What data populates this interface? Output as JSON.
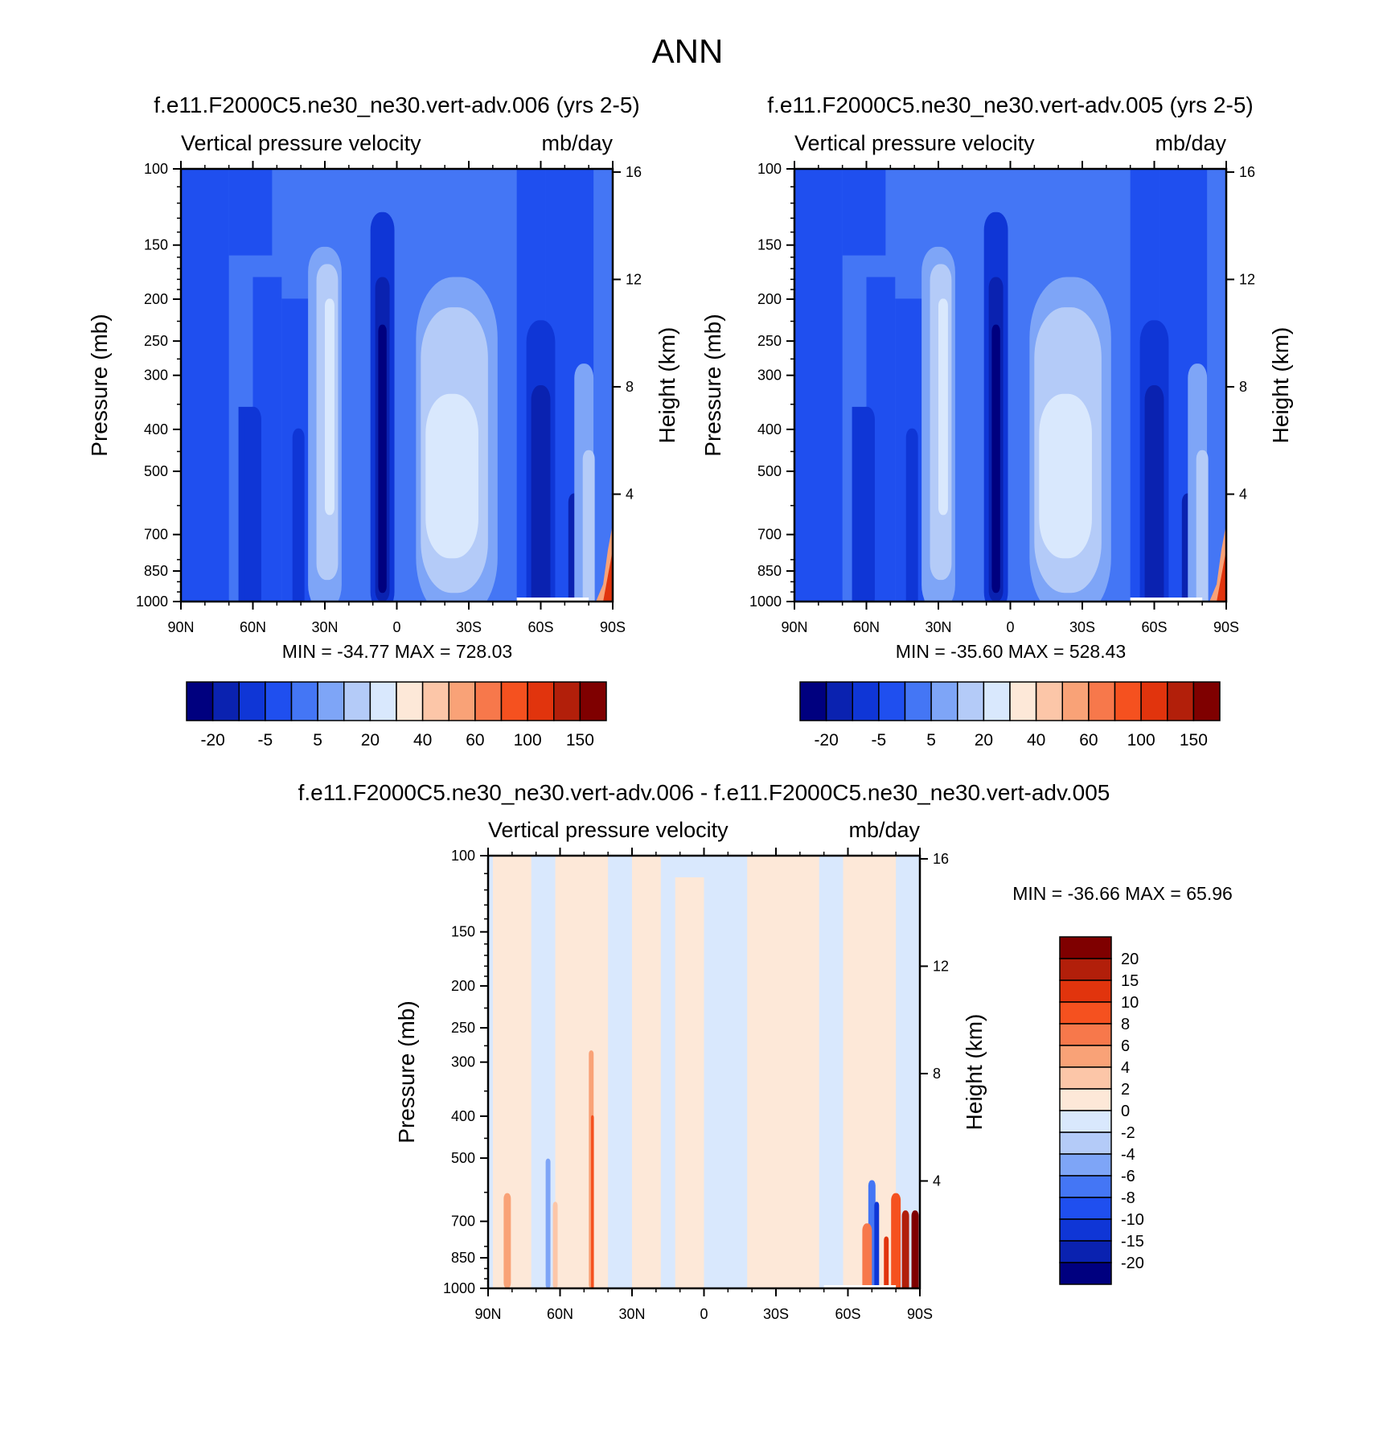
{
  "figure": {
    "title": "ANN"
  },
  "chart_data": [
    {
      "type": "heatmap",
      "title": "f.e11.F2000C5.ne30_ne30.vert-adv.006 (yrs 2-5)",
      "left_label": "Vertical pressure velocity",
      "right_label": "mb/day",
      "ylabel": "Pressure (mb)",
      "ylabel_right": "Height (km)",
      "y_scale": "log",
      "y_reversed": true,
      "ylim": [
        1000,
        100
      ],
      "y_ticks": [
        100,
        150,
        200,
        250,
        300,
        400,
        500,
        700,
        850,
        1000
      ],
      "y_ticks_right": [
        16,
        12,
        8,
        4
      ],
      "xlim": [
        90,
        -90
      ],
      "x_ticks": [
        90,
        60,
        30,
        0,
        -30,
        -60,
        -90
      ],
      "x_tick_labels": [
        "90N",
        "60N",
        "30N",
        "0",
        "30S",
        "60S",
        "90S"
      ],
      "stats": "MIN = -34.77  MAX = 728.03",
      "colorbar": {
        "orientation": "horizontal",
        "colors": [
          "#00007f",
          "#0a22b0",
          "#0f36d6",
          "#1f4fef",
          "#4476f5",
          "#7ea5f7",
          "#b4cbf8",
          "#d9e8fd",
          "#fde8d8",
          "#fcc6a8",
          "#f9a277",
          "#f7784b",
          "#f5511f",
          "#e1340d",
          "#b21f0a",
          "#7f0000"
        ],
        "tick_labels": [
          "-20",
          "-5",
          "5",
          "20",
          "40",
          "60",
          "100",
          "150"
        ]
      }
    },
    {
      "type": "heatmap",
      "title": "f.e11.F2000C5.ne30_ne30.vert-adv.005 (yrs 2-5)",
      "left_label": "Vertical pressure velocity",
      "right_label": "mb/day",
      "ylabel": "Pressure (mb)",
      "ylabel_right": "Height (km)",
      "y_scale": "log",
      "y_reversed": true,
      "ylim": [
        1000,
        100
      ],
      "y_ticks": [
        100,
        150,
        200,
        250,
        300,
        400,
        500,
        700,
        850,
        1000
      ],
      "y_ticks_right": [
        16,
        12,
        8,
        4
      ],
      "xlim": [
        90,
        -90
      ],
      "x_ticks": [
        90,
        60,
        30,
        0,
        -30,
        -60,
        -90
      ],
      "x_tick_labels": [
        "90N",
        "60N",
        "30N",
        "0",
        "30S",
        "60S",
        "90S"
      ],
      "stats": "MIN = -35.60  MAX = 528.43",
      "colorbar": {
        "orientation": "horizontal",
        "colors": [
          "#00007f",
          "#0a22b0",
          "#0f36d6",
          "#1f4fef",
          "#4476f5",
          "#7ea5f7",
          "#b4cbf8",
          "#d9e8fd",
          "#fde8d8",
          "#fcc6a8",
          "#f9a277",
          "#f7784b",
          "#f5511f",
          "#e1340d",
          "#b21f0a",
          "#7f0000"
        ],
        "tick_labels": [
          "-20",
          "-5",
          "5",
          "20",
          "40",
          "60",
          "100",
          "150"
        ]
      }
    },
    {
      "type": "heatmap",
      "title": "f.e11.F2000C5.ne30_ne30.vert-adv.006 - f.e11.F2000C5.ne30_ne30.vert-adv.005",
      "left_label": "Vertical pressure velocity",
      "right_label": "mb/day",
      "ylabel": "Pressure (mb)",
      "ylabel_right": "Height (km)",
      "y_scale": "log",
      "y_reversed": true,
      "ylim": [
        1000,
        100
      ],
      "y_ticks": [
        100,
        150,
        200,
        250,
        300,
        400,
        500,
        700,
        850,
        1000
      ],
      "y_ticks_right": [
        16,
        12,
        8,
        4
      ],
      "xlim": [
        90,
        -90
      ],
      "x_ticks": [
        90,
        60,
        30,
        0,
        -30,
        -60,
        -90
      ],
      "x_tick_labels": [
        "90N",
        "60N",
        "30N",
        "0",
        "30S",
        "60S",
        "90S"
      ],
      "stats": "MIN = -36.66  MAX =  65.96",
      "colorbar": {
        "orientation": "vertical",
        "colors": [
          "#7f0000",
          "#b21f0a",
          "#e1340d",
          "#f5511f",
          "#f7784b",
          "#f9a277",
          "#fcc6a8",
          "#fde8d8",
          "#d9e8fd",
          "#b4cbf8",
          "#7ea5f7",
          "#4476f5",
          "#1f4fef",
          "#0f36d6",
          "#0a22b0",
          "#00007f"
        ],
        "tick_labels": [
          "20",
          "15",
          "10",
          "8",
          "6",
          "4",
          "2",
          "0",
          "-2",
          "-4",
          "-6",
          "-8",
          "-10",
          "-15",
          "-20"
        ]
      }
    }
  ]
}
